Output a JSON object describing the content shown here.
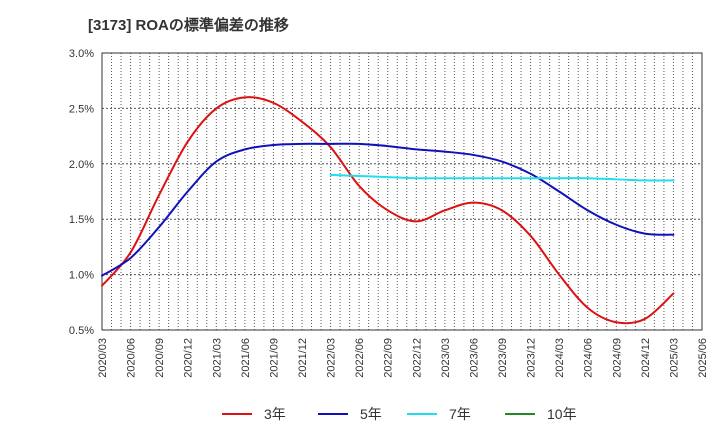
{
  "chart_data": {
    "type": "line",
    "title": "[3173]  ROAの標準偏差の推移",
    "xlabel": "",
    "ylabel": "",
    "ylim": [
      0.5,
      3.0
    ],
    "yticks": [
      "0.5%",
      "1.0%",
      "1.5%",
      "2.0%",
      "2.5%",
      "3.0%"
    ],
    "ytick_values": [
      0.5,
      1.0,
      1.5,
      2.0,
      2.5,
      3.0
    ],
    "categories": [
      "2020/03",
      "2020/06",
      "2020/09",
      "2020/12",
      "2021/03",
      "2021/06",
      "2021/09",
      "2021/12",
      "2022/03",
      "2022/06",
      "2022/09",
      "2022/12",
      "2023/03",
      "2023/06",
      "2023/09",
      "2023/12",
      "2024/03",
      "2024/06",
      "2024/09",
      "2024/12",
      "2025/03",
      "2025/06"
    ],
    "grid": true,
    "legend_position": "bottom",
    "series": [
      {
        "name": "3年",
        "color": "#dd1111",
        "values": [
          0.9,
          1.2,
          1.72,
          2.2,
          2.5,
          2.6,
          2.55,
          2.38,
          2.15,
          1.8,
          1.58,
          1.48,
          1.58,
          1.65,
          1.58,
          1.35,
          1.0,
          0.7,
          0.57,
          0.6,
          0.83,
          null
        ]
      },
      {
        "name": "5年",
        "color": "#1111bb",
        "values": [
          0.99,
          1.15,
          1.43,
          1.75,
          2.02,
          2.13,
          2.17,
          2.18,
          2.18,
          2.18,
          2.16,
          2.13,
          2.11,
          2.08,
          2.02,
          1.91,
          1.75,
          1.58,
          1.45,
          1.37,
          1.36,
          null
        ]
      },
      {
        "name": "7年",
        "color": "#22ddee",
        "values": [
          null,
          null,
          null,
          null,
          null,
          null,
          null,
          null,
          1.9,
          1.89,
          1.88,
          1.87,
          1.87,
          1.87,
          1.87,
          1.87,
          1.87,
          1.87,
          1.86,
          1.85,
          1.85,
          null
        ]
      },
      {
        "name": "10年",
        "color": "#228822",
        "values": [
          null,
          null,
          null,
          null,
          null,
          null,
          null,
          null,
          null,
          null,
          null,
          null,
          null,
          null,
          null,
          null,
          null,
          null,
          null,
          null,
          null,
          null
        ]
      }
    ]
  }
}
